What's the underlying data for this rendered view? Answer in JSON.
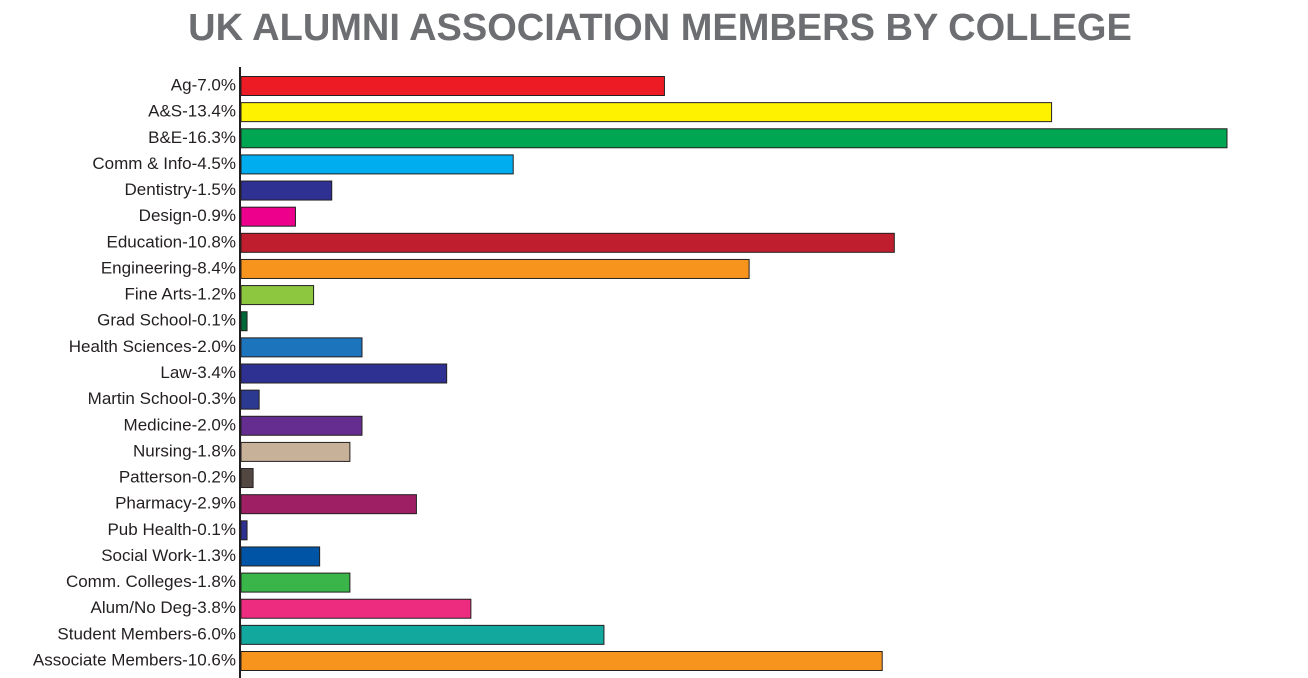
{
  "chart_data": {
    "type": "bar",
    "orientation": "horizontal",
    "title": "UK ALUMNI ASSOCIATION MEMBERS BY COLLEGE",
    "categories": [
      "Ag-7.0%",
      "A&S-13.4%",
      "B&E-16.3%",
      "Comm & Info-4.5%",
      "Dentistry-1.5%",
      "Design-0.9%",
      "Education-10.8%",
      "Engineering-8.4%",
      "Fine Arts-1.2%",
      "Grad School-0.1%",
      "Health Sciences-2.0%",
      "Law-3.4%",
      "Martin School-0.3%",
      "Medicine-2.0%",
      "Nursing-1.8%",
      "Patterson-0.2%",
      "Pharmacy-2.9%",
      "Pub Health-0.1%",
      "Social Work-1.3%",
      "Comm. Colleges-1.8%",
      "Alum/No Deg-3.8%",
      "Student Members-6.0%",
      "Associate Members-10.6%"
    ],
    "values": [
      7.0,
      13.4,
      16.3,
      4.5,
      1.5,
      0.9,
      10.8,
      8.4,
      1.2,
      0.1,
      2.0,
      3.4,
      0.3,
      2.0,
      1.8,
      0.2,
      2.9,
      0.1,
      1.3,
      1.8,
      3.8,
      6.0,
      10.6
    ],
    "colors": [
      "#ed1c24",
      "#fff200",
      "#00a651",
      "#00aeef",
      "#2e3192",
      "#ec008c",
      "#be1e2d",
      "#f7941d",
      "#8dc63f",
      "#006838",
      "#1c75bc",
      "#2e3192",
      "#2b3990",
      "#662d91",
      "#c7b299",
      "#534741",
      "#9e1f63",
      "#2e3192",
      "#0054a6",
      "#39b54a",
      "#ed2c7f",
      "#13a89e",
      "#f7941d"
    ]
  }
}
